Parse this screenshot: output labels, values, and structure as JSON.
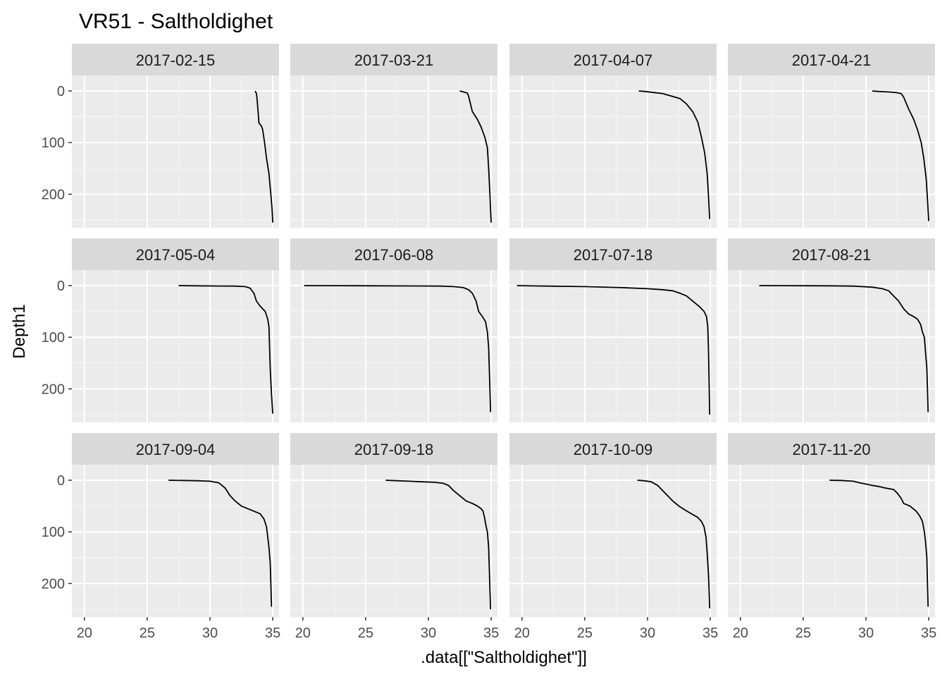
{
  "chart_data": {
    "type": "line",
    "title": "VR51  -  Saltholdighet",
    "xlabel": ".data[[\"Saltholdighet\"]]",
    "ylabel": "Depth1",
    "xlim": [
      19,
      35.5
    ],
    "ylim": [
      265,
      -30
    ],
    "y_reversed": true,
    "grid": true,
    "xticks": [
      20,
      25,
      30,
      35
    ],
    "yticks": [
      0,
      100,
      200
    ],
    "facets": [
      {
        "label": "2017-02-15",
        "series": [
          {
            "x": [
              33.6,
              33.7,
              33.75,
              33.8,
              33.85,
              33.9,
              34.1,
              34.2,
              34.35,
              34.5,
              34.7,
              34.85,
              34.95,
              35.0
            ],
            "y": [
              0,
              5,
              15,
              30,
              45,
              62,
              68,
              75,
              100,
              130,
              160,
              200,
              230,
              255
            ]
          }
        ]
      },
      {
        "label": "2017-03-21",
        "series": [
          {
            "x": [
              32.5,
              32.8,
              33.1,
              33.2,
              33.3,
              33.5,
              33.9,
              34.2,
              34.5,
              34.7,
              34.8,
              34.9,
              34.95,
              35.0
            ],
            "y": [
              0,
              2,
              4,
              10,
              20,
              40,
              55,
              70,
              90,
              110,
              150,
              200,
              230,
              255
            ]
          }
        ]
      },
      {
        "label": "2017-04-07",
        "series": [
          {
            "x": [
              29.3,
              29.8,
              30.5,
              31.2,
              31.9,
              32.6,
              33.1,
              33.6,
              34.0,
              34.3,
              34.55,
              34.75,
              34.85,
              34.95
            ],
            "y": [
              0,
              1,
              3,
              5,
              10,
              15,
              25,
              40,
              60,
              90,
              120,
              160,
              200,
              248
            ]
          }
        ]
      },
      {
        "label": "2017-04-21",
        "series": [
          {
            "x": [
              30.5,
              31.0,
              31.8,
              32.4,
              32.8,
              33.0,
              33.4,
              33.8,
              34.1,
              34.4,
              34.6,
              34.8,
              34.9,
              35.0
            ],
            "y": [
              0,
              1,
              2,
              3,
              5,
              12,
              35,
              55,
              75,
              100,
              130,
              170,
              210,
              252
            ]
          }
        ]
      },
      {
        "label": "2017-05-04",
        "series": [
          {
            "x": [
              27.5,
              29.0,
              31.0,
              32.0,
              32.8,
              33.2,
              33.5,
              33.7,
              34.0,
              34.4,
              34.6,
              34.7,
              34.75,
              34.8,
              34.9,
              35.0
            ],
            "y": [
              0,
              0.5,
              0.8,
              1,
              2,
              5,
              15,
              30,
              40,
              50,
              65,
              80,
              120,
              160,
              210,
              248
            ]
          }
        ]
      },
      {
        "label": "2017-06-08",
        "series": [
          {
            "x": [
              20.1,
              23.0,
              26.0,
              29.0,
              31.0,
              32.0,
              32.8,
              33.2,
              33.5,
              33.8,
              34.0,
              34.3,
              34.55,
              34.7,
              34.8,
              34.85,
              34.9,
              34.95
            ],
            "y": [
              0,
              0.2,
              0.4,
              0.7,
              1,
              2,
              4,
              8,
              15,
              30,
              50,
              60,
              70,
              90,
              120,
              160,
              200,
              245
            ]
          }
        ]
      },
      {
        "label": "2017-07-18",
        "series": [
          {
            "x": [
              19.6,
              22.0,
              25.0,
              28.0,
              30.0,
              31.2,
              32.0,
              32.6,
              33.1,
              33.6,
              34.1,
              34.5,
              34.7,
              34.8,
              34.85,
              34.9,
              34.95
            ],
            "y": [
              0,
              1,
              2,
              4,
              6,
              8,
              10,
              15,
              20,
              30,
              40,
              50,
              60,
              80,
              120,
              180,
              250
            ]
          }
        ]
      },
      {
        "label": "2017-08-21",
        "series": [
          {
            "x": [
              21.5,
              24.0,
              27.0,
              29.0,
              30.5,
              31.3,
              31.8,
              32.2,
              32.6,
              33.0,
              33.4,
              33.8,
              34.1,
              34.35,
              34.5,
              34.65,
              34.75,
              34.85,
              34.9,
              34.95
            ],
            "y": [
              0,
              0.2,
              0.5,
              1,
              3,
              6,
              10,
              20,
              30,
              45,
              55,
              60,
              65,
              75,
              90,
              100,
              130,
              160,
              200,
              245
            ]
          }
        ]
      },
      {
        "label": "2017-09-04",
        "series": [
          {
            "x": [
              26.7,
              27.8,
              29.0,
              30.0,
              30.7,
              31.2,
              31.6,
              32.0,
              32.5,
              33.3,
              34.0,
              34.3,
              34.5,
              34.6,
              34.7,
              34.8,
              34.85,
              34.9
            ],
            "y": [
              0,
              0.5,
              1,
              2,
              5,
              15,
              30,
              40,
              50,
              58,
              65,
              75,
              90,
              110,
              130,
              160,
              200,
              245
            ]
          }
        ]
      },
      {
        "label": "2017-09-18",
        "series": [
          {
            "x": [
              26.6,
              27.5,
              28.5,
              29.5,
              30.5,
              31.2,
              31.6,
              32.0,
              32.5,
              33.0,
              33.5,
              33.9,
              34.2,
              34.35,
              34.45,
              34.6,
              34.7,
              34.8,
              34.85,
              34.9,
              34.95
            ],
            "y": [
              0,
              1,
              2,
              3,
              4,
              6,
              10,
              20,
              30,
              40,
              45,
              50,
              55,
              60,
              70,
              90,
              100,
              130,
              170,
              210,
              250
            ]
          }
        ]
      },
      {
        "label": "2017-10-09",
        "series": [
          {
            "x": [
              29.2,
              29.7,
              30.3,
              30.8,
              31.2,
              31.6,
              32.0,
              32.5,
              33.0,
              33.5,
              34.0,
              34.3,
              34.5,
              34.65,
              34.75,
              34.85,
              34.9,
              34.95
            ],
            "y": [
              0,
              1,
              3,
              10,
              20,
              30,
              40,
              50,
              58,
              65,
              72,
              80,
              90,
              110,
              140,
              180,
              210,
              248
            ]
          }
        ]
      },
      {
        "label": "2017-11-20",
        "series": [
          {
            "x": [
              27.1,
              28.0,
              29.0,
              29.5,
              30.5,
              31.0,
              31.5,
              32.2,
              32.5,
              32.8,
              33.0,
              33.5,
              34.0,
              34.3,
              34.5,
              34.65,
              34.75,
              34.85,
              34.9,
              34.95
            ],
            "y": [
              0,
              0.5,
              2,
              5,
              10,
              12,
              15,
              18,
              25,
              35,
              45,
              50,
              60,
              70,
              80,
              100,
              120,
              150,
              200,
              245
            ]
          }
        ]
      }
    ],
    "colors": {
      "panel_bg": "#ebebeb",
      "strip_bg": "#d9d9d9",
      "grid_major": "#ffffff",
      "grid_minor": "#f5f5f5",
      "line": "#000000",
      "tick_text": "#4d4d4d",
      "tick_mark": "#333333"
    }
  }
}
